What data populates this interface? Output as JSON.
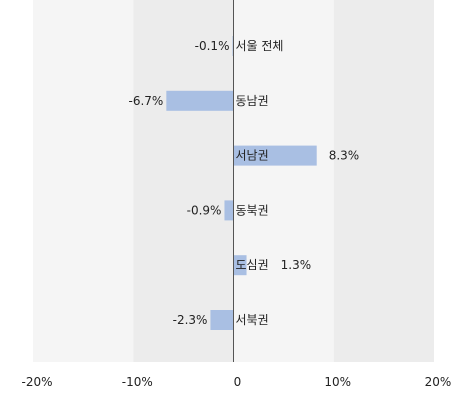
{
  "chart_data": {
    "type": "bar",
    "orientation": "horizontal",
    "categories": [
      "서울 전체",
      "동남권",
      "서남권",
      "동북권",
      "도심권",
      "서북권"
    ],
    "values": [
      -0.1,
      -6.7,
      8.3,
      -0.9,
      1.3,
      -2.3
    ],
    "value_labels": [
      "-0.1%",
      "-6.7%",
      "8.3%",
      "-0.9%",
      "1.3%",
      "-2.3%"
    ],
    "xlim": [
      -20,
      20
    ],
    "x_ticks": [
      -20,
      -10,
      0,
      10,
      20
    ],
    "x_tick_labels": [
      "-20%",
      "-10%",
      "0",
      "10%",
      "20%"
    ],
    "grid": false,
    "colors": {
      "bar": "#a9bfe3",
      "band_light": "#f5f5f5",
      "band_dark": "#ececec",
      "axis": "#555555"
    }
  }
}
